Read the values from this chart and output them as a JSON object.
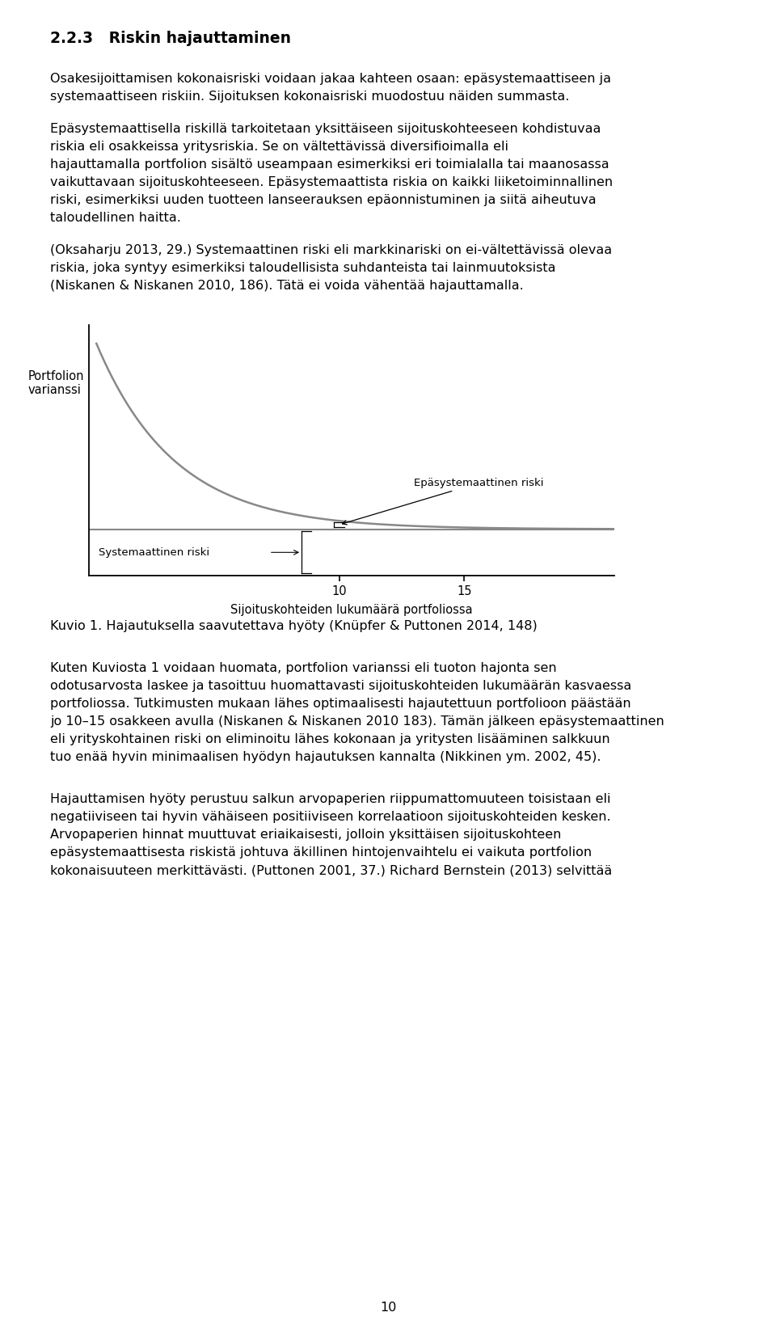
{
  "title": "2.2.3   Riskin hajauttaminen",
  "para1": "Osakesijoittamisen kokonaisriski voidaan jakaa kahteen osaan: epäsystemaattiseen ja systemaattiseen riskiin. Sijoituksen kokonaisriski muodostuu näiden summasta.",
  "para2": "Epäsystemaattisella riskillä tarkoitetaan yksittäiseen sijoituskohteeseen kohdistuvaa riskia eli osakkeissa yritysriskia. Se on vältettävissä diversifioimalla eli hajauttamalla portfolion sisältö useampaan esimerkiksi eri toimialalla tai maanosassa vaikuttavaan sijoituskohteeseen. Epäsystemaattista riskia on kaikki liiketoiminnallinen riski, esimerkiksi uuden tuotteen lanseerauksen epäonnistuminen ja siitä aiheutuva taloudellinen haitta.",
  "para3": "(Oksaharju 2013, 29.) Systemaattinen riski eli markkinariski on ei-vältettävissä olevaa riskia, joka syntyy esimerkiksi taloudellisista suhdanteista tai lainmuutoksista (Niskanen & Niskanen 2010, 186). Tätä ei voida vähentää hajauttamalla.",
  "caption": "Kuvio 1. Hajautuksella saavutettava hyöty (Knüpfer & Puttonen 2014, 148)",
  "para4": "Kuten Kuviosta 1 voidaan huomata, portfolion varianssi eli tuoton hajonta sen odotusarvosta laskee ja tasoittuu huomattavasti sijoituskohteiden lukumäärän kasvaessa portfoliossa. Tutkimusten mukaan lähes optimaalisesti hajautettuun portfolioon päästään jo 10–15 osakkeen avulla (Niskanen & Niskanen 2010 183). Tämän jälkeen epäsystemaattinen eli yrityskohtainen riski on eliminoitu lähes kokonaan ja yritysten lisääminen salkkuun tuo enää hyvin minimaalisen hyödyn hajautuksen kannalta (Nikkinen ym. 2002, 45).",
  "para5": "Hajauttamisen hyöty perustuu salkun arvopaperien riippumattomuuteen toisistaan eli negatiiviseen tai hyvin vähäiseen positiiviseen korrelaatioon sijoituskohteiden kesken. Arvopaperien hinnat muuttuvat eriaikaisesti, jolloin yksittäisen sijoituskohteen epäsystemaattisesta riskistä johtuva äkillinen hintojenvaihtelu ei vaikuta portfolion kokonaisuuteen merkittävästi. (Puttonen 2001, 37.) Richard Bernstein (2013) selvittää",
  "page_number": "10",
  "ylabel_line1": "Portfolion",
  "ylabel_line2": "varianssi",
  "xlabel": "Sijoituskohteiden lukumäärä portfoliossa",
  "label_epasyst": "Epäsystemaattinen riski",
  "label_syst": "Systemaattinen riski",
  "background_color": "#ffffff",
  "text_color": "#000000",
  "curve_color": "#888888",
  "syst_color": "#888888"
}
